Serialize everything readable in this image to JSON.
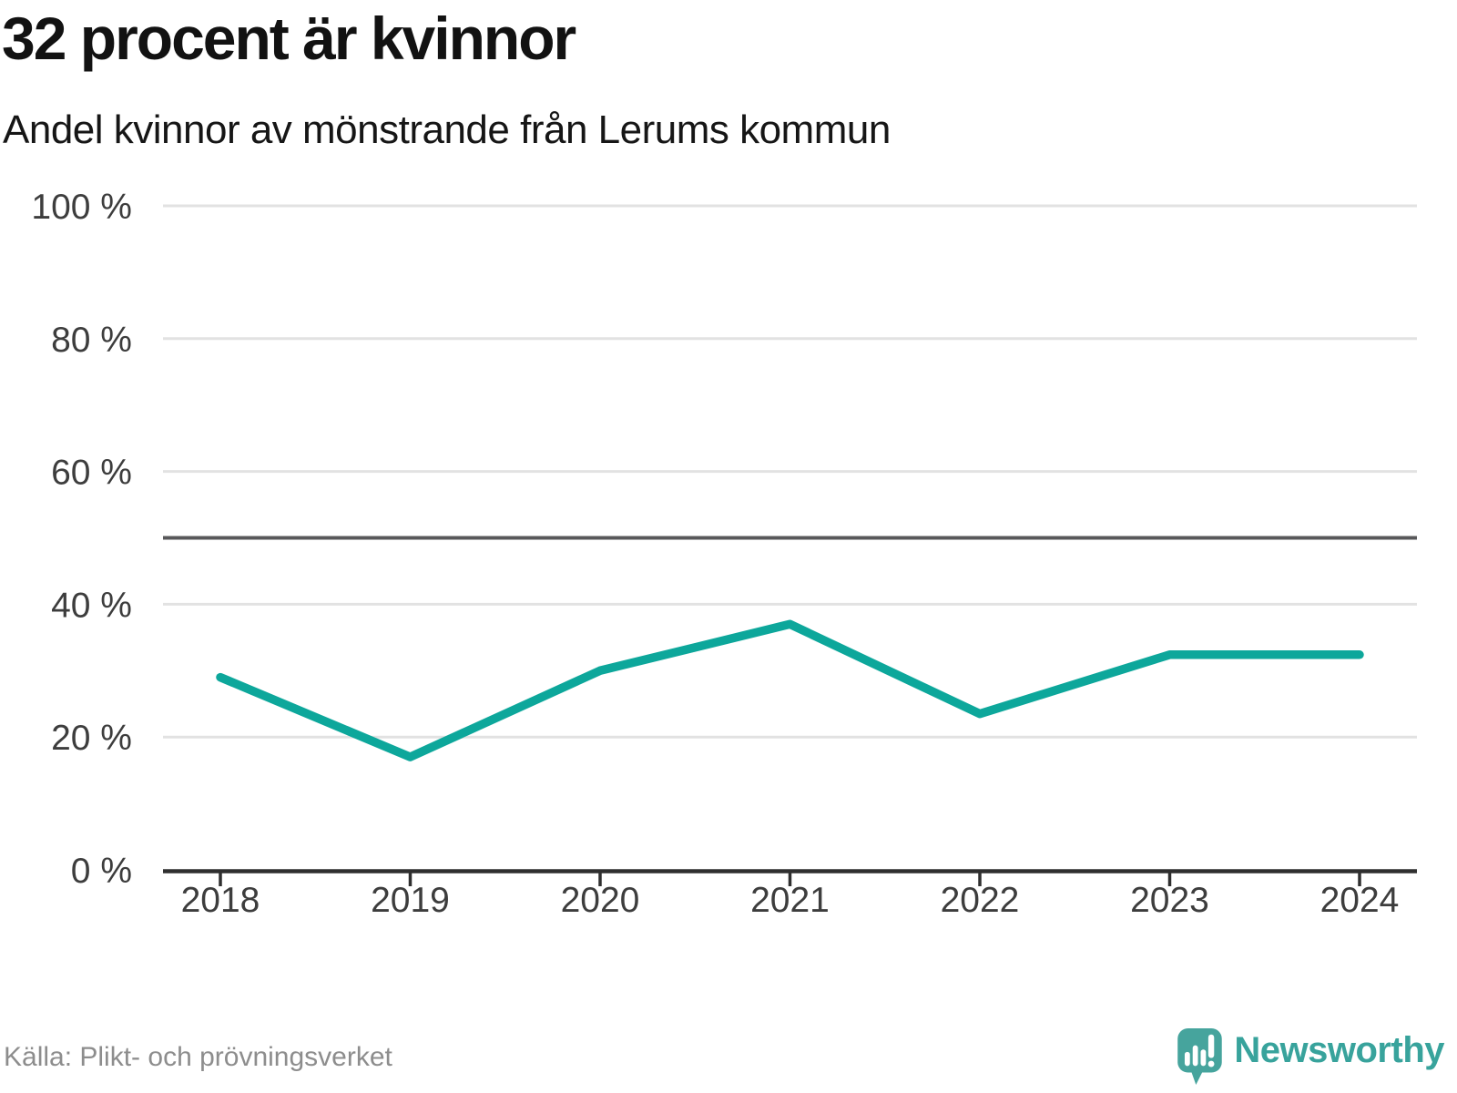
{
  "header": {
    "title": "32 procent är kvinnor",
    "subtitle": "Andel kvinnor av mönstrande från Lerums kommun"
  },
  "chart_data": {
    "type": "line",
    "title": "32 procent är kvinnor",
    "subtitle": "Andel kvinnor av mönstrande från Lerums kommun",
    "categories": [
      "2018",
      "2019",
      "2020",
      "2021",
      "2022",
      "2023",
      "2024"
    ],
    "series": [
      {
        "name": "Andel kvinnor av mönstrande",
        "values": [
          29,
          17,
          30,
          37,
          23.5,
          32.4,
          32.4
        ]
      }
    ],
    "unit": "%",
    "ylim": [
      0,
      100
    ],
    "y_ticks": [
      {
        "value": 0,
        "label": "0 %"
      },
      {
        "value": 20,
        "label": "20 %"
      },
      {
        "value": 40,
        "label": "40 %"
      },
      {
        "value": 60,
        "label": "60 %"
      },
      {
        "value": 80,
        "label": "80 %"
      },
      {
        "value": 100,
        "label": "100 %"
      }
    ],
    "reference_line_value": 50,
    "grid": true,
    "legend_position": "none"
  },
  "footer": {
    "source": "Källa: Plikt- och prövningsverket",
    "brand_name": "Newsworthy",
    "brand_icon": "speech-bubble-bar-chart-icon"
  },
  "colors": {
    "line": "#0da79b",
    "grid": "#e2e2e2",
    "reference_line": "#58585a",
    "axis": "#2f2f2f",
    "tick_label": "#3d3d3d",
    "title": "#121212",
    "subtitle": "#161616",
    "source_text": "#8d8d8d",
    "brand": "#38a39c",
    "brand_icon_fill": "#46a49d"
  }
}
